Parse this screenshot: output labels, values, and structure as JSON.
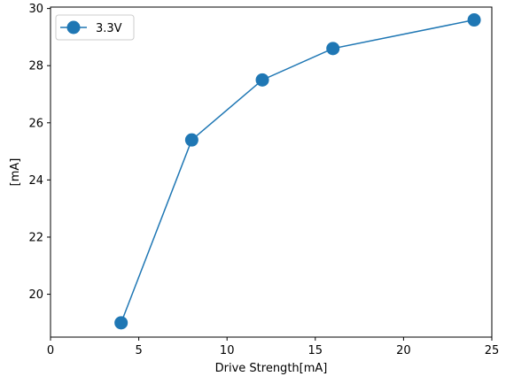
{
  "chart_data": {
    "type": "line",
    "xlabel": "Drive Strength[mA]",
    "ylabel": "[mA]",
    "xlim": [
      0,
      25
    ],
    "ylim": [
      18.5,
      30.05
    ],
    "xticks": [
      0,
      5,
      10,
      15,
      20,
      25
    ],
    "yticks": [
      20,
      22,
      24,
      26,
      28,
      30
    ],
    "grid": false,
    "legend_position": "top-left",
    "series": [
      {
        "name": "3.3V",
        "color": "#1f77b4",
        "marker": "circle",
        "x": [
          4,
          8,
          12,
          16,
          24
        ],
        "y": [
          19.0,
          25.4,
          27.5,
          28.6,
          29.6
        ]
      }
    ]
  }
}
